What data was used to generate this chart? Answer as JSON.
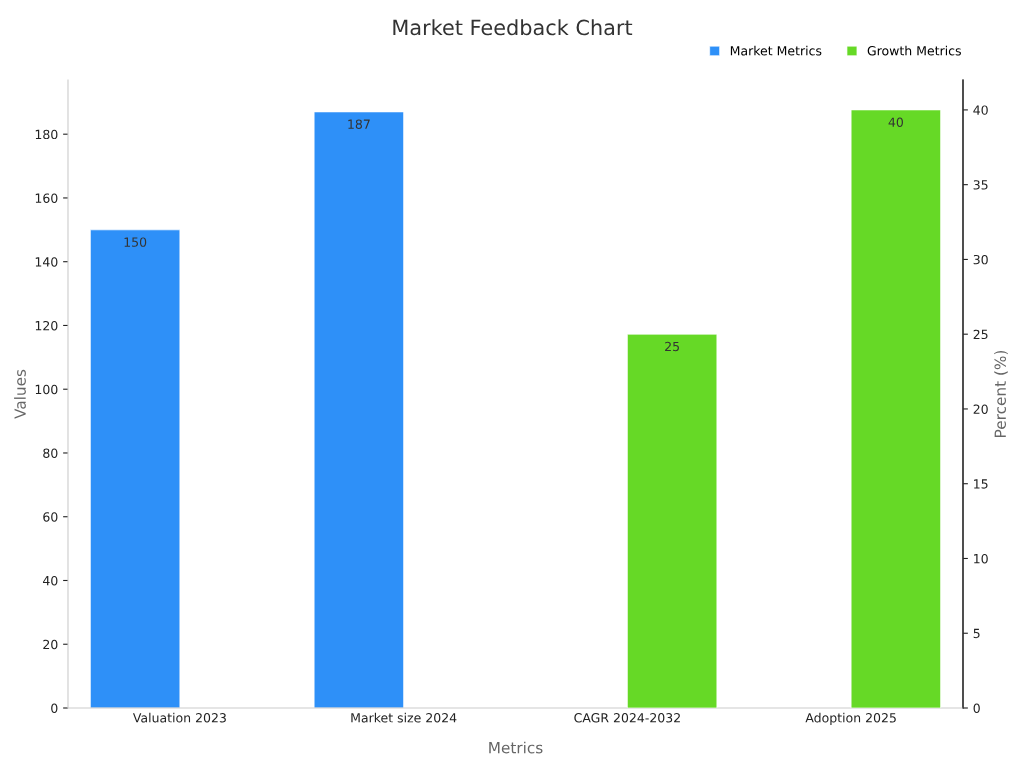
{
  "chart_data": {
    "type": "bar",
    "title": "Market Feedback Chart",
    "xlabel": "Metrics",
    "ylabel": "Values",
    "y2label": "Percent (%)",
    "categories": [
      "Valuation 2023",
      "Market size 2024",
      "CAGR 2024-2032",
      "Adoption 2025"
    ],
    "series": [
      {
        "name": "Market Metrics",
        "color": "#2e90f8",
        "values": [
          150,
          187,
          null,
          null
        ]
      },
      {
        "name": "Growth Metrics",
        "color": "#66d926",
        "values": [
          null,
          null,
          25,
          40
        ],
        "axis": "y2"
      }
    ],
    "ylim": [
      0,
      197
    ],
    "yticks": [
      0,
      20,
      40,
      60,
      80,
      100,
      120,
      140,
      160,
      180
    ],
    "y2lim": [
      0,
      42
    ],
    "y2ticks": [
      0,
      5,
      10,
      15,
      20,
      25,
      30,
      35,
      40
    ],
    "data_labels": true,
    "grid": false,
    "legend": "top right"
  }
}
